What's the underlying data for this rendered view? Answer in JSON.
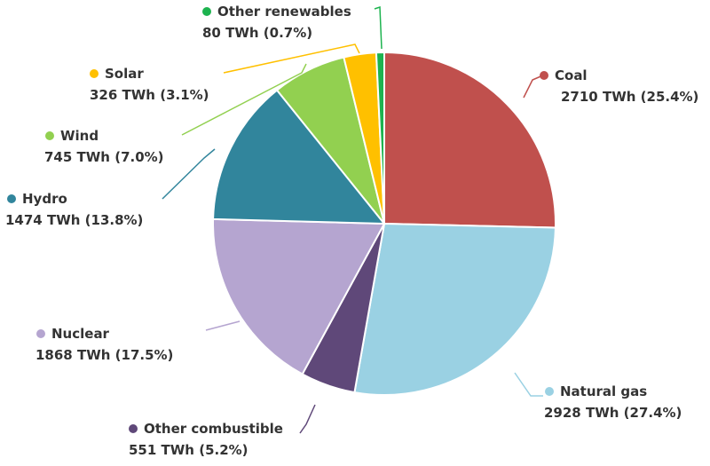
{
  "chart_data": {
    "type": "pie",
    "unit": "TWh",
    "slices": [
      {
        "name": "Coal",
        "value": 2710,
        "percent": "25.4%",
        "value_label": "2710 TWh (25.4%)",
        "color": "#c0504d"
      },
      {
        "name": "Natural gas",
        "value": 2928,
        "percent": "27.4%",
        "value_label": "2928 TWh (27.4%)",
        "color": "#9ad1e3"
      },
      {
        "name": "Other combustible",
        "value": 551,
        "percent": "5.2%",
        "value_label": "551 TWh (5.2%)",
        "color": "#5f4879"
      },
      {
        "name": "Nuclear",
        "value": 1868,
        "percent": "17.5%",
        "value_label": "1868 TWh (17.5%)",
        "color": "#b5a5d0"
      },
      {
        "name": "Hydro",
        "value": 1474,
        "percent": "13.8%",
        "value_label": "1474 TWh (13.8%)",
        "color": "#31859c"
      },
      {
        "name": "Wind",
        "value": 745,
        "percent": "7.0%",
        "value_label": "745 TWh (7.0%)",
        "color": "#92d050"
      },
      {
        "name": "Solar",
        "value": 326,
        "percent": "3.1%",
        "value_label": "326 TWh (3.1%)",
        "color": "#ffc000"
      },
      {
        "name": "Other renewables",
        "value": 80,
        "percent": "0.7%",
        "value_label": "80 TWh (0.7%)",
        "color": "#1db34f"
      }
    ]
  }
}
